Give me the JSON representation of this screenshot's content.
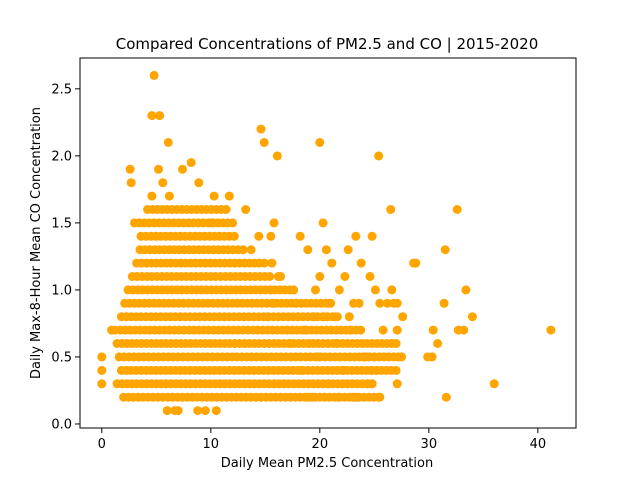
{
  "chart_data": {
    "type": "scatter",
    "title": "Compared Concentrations of PM2.5 and CO | 2015-2020",
    "xlabel": "Daily Mean PM2.5 Concentration",
    "ylabel": "Daily Max-8-Hour Mean CO Concentration",
    "xlim": [
      -2,
      43.5
    ],
    "ylim": [
      -0.03,
      2.73
    ],
    "xticks": [
      0,
      10,
      20,
      30,
      40
    ],
    "yticks": [
      0.0,
      0.5,
      1.0,
      1.5,
      2.0,
      2.5
    ],
    "xtick_labels": [
      "0",
      "10",
      "20",
      "30",
      "40"
    ],
    "ytick_labels": [
      "0.0",
      "0.5",
      "1.0",
      "1.5",
      "2.0",
      "2.5"
    ],
    "grid": false,
    "marker_color": "#FFA500",
    "bands": [
      {
        "y": 0.2,
        "x_from": 2.0,
        "x_to": 25.5
      },
      {
        "y": 0.3,
        "x_from": 1.4,
        "x_to": 25.2
      },
      {
        "y": 0.4,
        "x_from": 1.8,
        "x_to": 27.0
      },
      {
        "y": 0.5,
        "x_from": 1.6,
        "x_to": 27.2
      },
      {
        "y": 0.6,
        "x_from": 1.4,
        "x_to": 26.8
      },
      {
        "y": 0.7,
        "x_from": 1.7,
        "x_to": 24.0
      },
      {
        "y": 0.8,
        "x_from": 1.8,
        "x_to": 22.0
      },
      {
        "y": 0.9,
        "x_from": 2.1,
        "x_to": 21.0
      },
      {
        "y": 1.0,
        "x_from": 2.4,
        "x_to": 17.5
      },
      {
        "y": 1.1,
        "x_from": 2.8,
        "x_to": 15.5
      },
      {
        "y": 1.2,
        "x_from": 3.2,
        "x_to": 15.0
      },
      {
        "y": 1.3,
        "x_from": 3.5,
        "x_to": 13.0
      },
      {
        "y": 1.4,
        "x_from": 3.6,
        "x_to": 12.5
      },
      {
        "y": 1.5,
        "x_from": 3.0,
        "x_to": 12.0
      },
      {
        "y": 1.6,
        "x_from": 4.2,
        "x_to": 11.5
      }
    ],
    "points": [
      [
        4.8,
        2.6
      ],
      [
        4.6,
        2.3
      ],
      [
        5.3,
        2.3
      ],
      [
        14.6,
        2.2
      ],
      [
        6.1,
        2.1
      ],
      [
        14.9,
        2.1
      ],
      [
        20.0,
        2.1
      ],
      [
        8.2,
        1.95
      ],
      [
        2.6,
        1.9
      ],
      [
        5.2,
        1.9
      ],
      [
        7.4,
        1.9
      ],
      [
        16.1,
        2.0
      ],
      [
        25.4,
        2.0
      ],
      [
        2.7,
        1.8
      ],
      [
        5.6,
        1.8
      ],
      [
        8.9,
        1.8
      ],
      [
        4.6,
        1.7
      ],
      [
        6.2,
        1.7
      ],
      [
        10.3,
        1.7
      ],
      [
        11.7,
        1.7
      ],
      [
        13.2,
        1.6
      ],
      [
        26.5,
        1.6
      ],
      [
        32.6,
        1.6
      ],
      [
        15.8,
        1.5
      ],
      [
        20.3,
        1.5
      ],
      [
        10.0,
        1.5
      ],
      [
        14.4,
        1.4
      ],
      [
        15.5,
        1.4
      ],
      [
        18.2,
        1.4
      ],
      [
        23.3,
        1.4
      ],
      [
        24.8,
        1.4
      ],
      [
        22.6,
        1.3
      ],
      [
        31.5,
        1.3
      ],
      [
        20.6,
        1.3
      ],
      [
        18.9,
        1.3
      ],
      [
        13.7,
        1.3
      ],
      [
        21.1,
        1.2
      ],
      [
        23.8,
        1.2
      ],
      [
        28.6,
        1.2
      ],
      [
        28.8,
        1.2
      ],
      [
        15.6,
        1.2
      ],
      [
        16.4,
        1.1
      ],
      [
        20.0,
        1.1
      ],
      [
        22.3,
        1.1
      ],
      [
        24.6,
        1.1
      ],
      [
        16.2,
        1.1
      ],
      [
        17.6,
        1.0
      ],
      [
        19.6,
        1.0
      ],
      [
        21.8,
        1.0
      ],
      [
        25.1,
        1.0
      ],
      [
        26.6,
        1.0
      ],
      [
        33.4,
        1.0
      ],
      [
        25.5,
        0.9
      ],
      [
        26.2,
        0.9
      ],
      [
        26.8,
        0.9
      ],
      [
        27.1,
        0.9
      ],
      [
        31.4,
        0.9
      ],
      [
        15.8,
        0.9
      ],
      [
        17.8,
        0.9
      ],
      [
        20.9,
        0.9
      ],
      [
        23.1,
        0.9
      ],
      [
        23.6,
        0.9
      ],
      [
        19.5,
        0.8
      ],
      [
        20.4,
        0.8
      ],
      [
        21.4,
        0.8
      ],
      [
        22.7,
        0.8
      ],
      [
        27.6,
        0.8
      ],
      [
        34.0,
        0.8
      ],
      [
        41.2,
        0.7
      ],
      [
        30.4,
        0.7
      ],
      [
        32.7,
        0.7
      ],
      [
        33.2,
        0.7
      ],
      [
        25.8,
        0.7
      ],
      [
        27.1,
        0.7
      ],
      [
        29.9,
        0.5
      ],
      [
        30.3,
        0.5
      ],
      [
        27.2,
        0.5
      ],
      [
        27.5,
        0.5
      ],
      [
        30.8,
        0.6
      ],
      [
        26.6,
        0.6
      ],
      [
        27.0,
        0.6
      ],
      [
        24.0,
        0.5
      ],
      [
        24.3,
        0.5
      ],
      [
        25.0,
        0.5
      ],
      [
        24.7,
        0.4
      ],
      [
        25.2,
        0.4
      ],
      [
        24.4,
        0.3
      ],
      [
        24.8,
        0.3
      ],
      [
        27.1,
        0.3
      ],
      [
        36.0,
        0.3
      ],
      [
        31.6,
        0.2
      ],
      [
        23.0,
        0.2
      ],
      [
        23.3,
        0.2
      ],
      [
        25.5,
        0.2
      ],
      [
        0.0,
        0.5
      ],
      [
        0.0,
        0.4
      ],
      [
        0.0,
        0.3
      ],
      [
        0.9,
        0.7
      ],
      [
        1.2,
        0.7
      ],
      [
        6.0,
        0.1
      ],
      [
        6.7,
        0.1
      ],
      [
        7.0,
        0.1
      ],
      [
        8.8,
        0.1
      ],
      [
        9.5,
        0.1
      ],
      [
        10.5,
        0.1
      ],
      [
        15.5,
        1.0
      ],
      [
        17.0,
        0.7
      ],
      [
        18.6,
        0.7
      ],
      [
        19.0,
        0.6
      ],
      [
        18.0,
        0.8
      ],
      [
        15.2,
        0.8
      ],
      [
        17.3,
        0.6
      ],
      [
        18.3,
        0.4
      ],
      [
        19.8,
        0.5
      ],
      [
        20.8,
        0.3
      ],
      [
        21.7,
        0.2
      ],
      [
        22.2,
        0.4
      ],
      [
        21.5,
        0.6
      ],
      [
        22.8,
        0.7
      ],
      [
        19.3,
        0.2
      ],
      [
        18.8,
        0.2
      ]
    ]
  }
}
